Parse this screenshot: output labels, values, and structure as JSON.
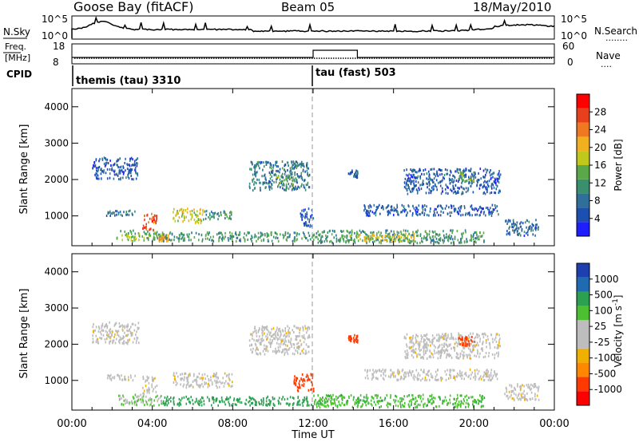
{
  "header": {
    "station": "Goose Bay (fitACF)",
    "beam": "Beam 05",
    "date": "18/May/2010"
  },
  "top_strips": {
    "noise": {
      "left_label": "N.Sky",
      "right_label": "N.Search",
      "right_legend": "........",
      "y_ticks_right": [
        "10^5",
        "10^0"
      ],
      "y_ticks_left": [
        "10^5",
        "10^0"
      ]
    },
    "freq": {
      "left_label_1": "Freq.",
      "left_label_2": "[MHz]",
      "right_label": "Nave",
      "right_legend": "....",
      "y_ticks_left": [
        "18",
        "8"
      ],
      "y_ticks_right": [
        "60",
        "0"
      ]
    },
    "cpid": {
      "left_label": "CPID",
      "programs": [
        {
          "name": "themis (tau) 3310",
          "start_hour": 0
        },
        {
          "name": "tau (fast) 503",
          "start_hour": 12
        }
      ]
    }
  },
  "colors": {
    "power_scale": [
      "#1e1eff",
      "#1d4fb0",
      "#2f6f9a",
      "#3a8f6f",
      "#5aa84a",
      "#c0c81c",
      "#f0b020",
      "#f07820",
      "#e8401c",
      "#ff0000"
    ],
    "velocity_scale": [
      "#ff0000",
      "#ff3a00",
      "#ff8800",
      "#f0b000",
      "#bdbdbd",
      "#bdbdbd",
      "#4cc030",
      "#2aa050",
      "#1f6ab0",
      "#1e3fb0"
    ]
  },
  "chart_data": [
    {
      "type": "heatmap",
      "title": "",
      "quantity": "Power",
      "xlabel": "",
      "ylabel": "Slant Range [km]",
      "colorbar_label": "Power [dB]",
      "colorbar_ticks": [
        "28",
        "24",
        "20",
        "16",
        "12",
        "8",
        "4"
      ],
      "colorbar_range": [
        0,
        32
      ],
      "x_range_hours": [
        0,
        24
      ],
      "ylim": [
        180,
        4500
      ],
      "y_ticks": [
        "1000",
        "2000",
        "3000",
        "4000"
      ],
      "echo_regions": [
        {
          "t0": 2.2,
          "t1": 4.5,
          "r0": 300,
          "r1": 600,
          "power": 14
        },
        {
          "t0": 3.5,
          "t1": 4.2,
          "r0": 600,
          "r1": 1100,
          "power": 26
        },
        {
          "t0": 4.3,
          "t1": 4.8,
          "r0": 300,
          "r1": 500,
          "power": 22
        },
        {
          "t0": 5.0,
          "t1": 6.5,
          "r0": 800,
          "r1": 1200,
          "power": 18
        },
        {
          "t0": 6.5,
          "t1": 8.0,
          "r0": 900,
          "r1": 1150,
          "power": 12
        },
        {
          "t0": 1.7,
          "t1": 3.2,
          "r0": 1000,
          "r1": 1150,
          "power": 8
        },
        {
          "t0": 1.0,
          "t1": 3.3,
          "r0": 2000,
          "r1": 2600,
          "power": 6
        },
        {
          "t0": 4.5,
          "t1": 12.0,
          "r0": 300,
          "r1": 550,
          "power": 12
        },
        {
          "t0": 8.8,
          "t1": 11.8,
          "r0": 1700,
          "r1": 2500,
          "power": 9
        },
        {
          "t0": 10.0,
          "t1": 11.0,
          "r0": 1800,
          "r1": 2100,
          "power": 14
        },
        {
          "t0": 11.3,
          "t1": 12.0,
          "r0": 700,
          "r1": 1200,
          "power": 6
        },
        {
          "t0": 12.0,
          "t1": 20.5,
          "r0": 250,
          "r1": 600,
          "power": 12
        },
        {
          "t0": 13.8,
          "t1": 17.0,
          "r0": 300,
          "r1": 520,
          "power": 18
        },
        {
          "t0": 14.5,
          "t1": 21.2,
          "r0": 1000,
          "r1": 1300,
          "power": 6
        },
        {
          "t0": 16.5,
          "t1": 21.3,
          "r0": 1600,
          "r1": 2300,
          "power": 6
        },
        {
          "t0": 19.2,
          "t1": 20.0,
          "r0": 1950,
          "r1": 2200,
          "power": 13
        },
        {
          "t0": 13.7,
          "t1": 14.2,
          "r0": 2050,
          "r1": 2250,
          "power": 7
        },
        {
          "t0": 21.5,
          "t1": 23.2,
          "r0": 450,
          "r1": 900,
          "power": 7
        }
      ]
    },
    {
      "type": "heatmap",
      "title": "",
      "quantity": "Velocity",
      "xlabel": "Time UT",
      "ylabel": "Slant Range [km]",
      "colorbar_label": "Velocity [m s^-1]",
      "colorbar_ticks": [
        "1000",
        "500",
        "100",
        "25",
        "-25",
        "-100",
        "-500",
        "-1000"
      ],
      "colorbar_range": [
        -1000,
        1000
      ],
      "x_range_hours": [
        0,
        24
      ],
      "x_ticks": [
        "00:00",
        "04:00",
        "08:00",
        "12:00",
        "16:00",
        "20:00",
        "00:00"
      ],
      "ylim": [
        180,
        4500
      ],
      "y_ticks": [
        "1000",
        "2000",
        "3000",
        "4000"
      ],
      "echo_regions": [
        {
          "t0": 2.2,
          "t1": 4.5,
          "r0": 300,
          "r1": 600,
          "velocity": 50
        },
        {
          "t0": 3.5,
          "t1": 4.2,
          "r0": 600,
          "r1": 1100,
          "velocity": 0
        },
        {
          "t0": 5.0,
          "t1": 8.0,
          "r0": 800,
          "r1": 1200,
          "velocity": 0
        },
        {
          "t0": 1.7,
          "t1": 3.2,
          "r0": 1000,
          "r1": 1150,
          "velocity": 0
        },
        {
          "t0": 1.0,
          "t1": 3.3,
          "r0": 2000,
          "r1": 2600,
          "velocity": 0
        },
        {
          "t0": 4.5,
          "t1": 12.0,
          "r0": 300,
          "r1": 550,
          "velocity": 150
        },
        {
          "t0": 8.8,
          "t1": 11.8,
          "r0": 1700,
          "r1": 2500,
          "velocity": 0
        },
        {
          "t0": 11.0,
          "t1": 12.0,
          "r0": 700,
          "r1": 1200,
          "velocity": -150
        },
        {
          "t0": 12.0,
          "t1": 20.5,
          "r0": 250,
          "r1": 600,
          "velocity": 80
        },
        {
          "t0": 14.5,
          "t1": 21.2,
          "r0": 1000,
          "r1": 1300,
          "velocity": 0
        },
        {
          "t0": 16.5,
          "t1": 21.3,
          "r0": 1600,
          "r1": 2300,
          "velocity": 0
        },
        {
          "t0": 19.2,
          "t1": 20.0,
          "r0": 1950,
          "r1": 2200,
          "velocity": -200
        },
        {
          "t0": 13.7,
          "t1": 14.2,
          "r0": 2050,
          "r1": 2250,
          "velocity": -400
        },
        {
          "t0": 21.5,
          "t1": 23.2,
          "r0": 450,
          "r1": 900,
          "velocity": 0
        }
      ]
    }
  ]
}
